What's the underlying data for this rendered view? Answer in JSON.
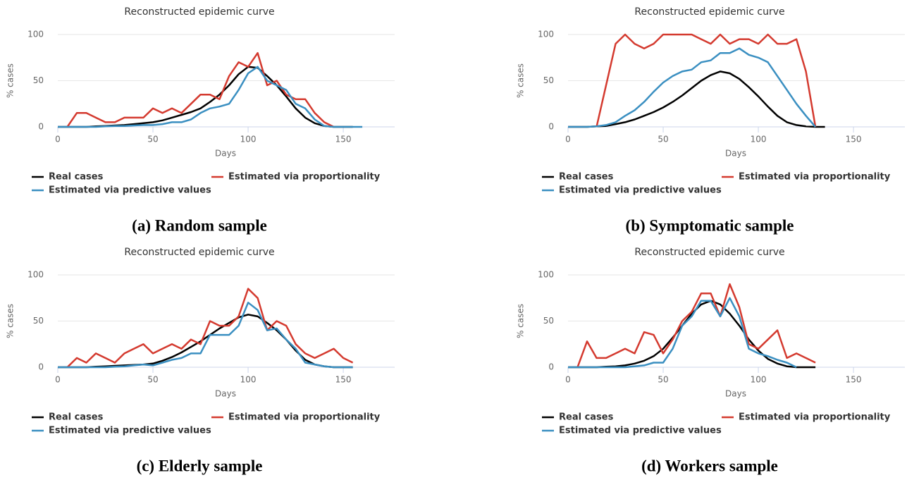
{
  "chart_data": [
    {
      "type": "line",
      "title": "Reconstructed epidemic curve",
      "caption": "(a) Random sample",
      "xlabel": "Days",
      "ylabel": "% cases",
      "xlim": [
        0,
        177
      ],
      "ylim": [
        0,
        100
      ],
      "xticks": [
        0,
        50,
        100,
        150
      ],
      "yticks": [
        0,
        50,
        100
      ],
      "grid": true,
      "x": [
        0,
        5,
        10,
        15,
        20,
        25,
        30,
        35,
        40,
        45,
        50,
        55,
        60,
        65,
        70,
        75,
        80,
        85,
        90,
        95,
        100,
        105,
        110,
        115,
        120,
        125,
        130,
        135,
        140,
        145,
        150,
        155,
        160
      ],
      "series": [
        {
          "name": "Real cases",
          "color": "#000000",
          "values": [
            0,
            0,
            0,
            0,
            0.5,
            1,
            1.5,
            2,
            3,
            4,
            5,
            7,
            10,
            13,
            16,
            20,
            27,
            35,
            45,
            57,
            65,
            64,
            55,
            45,
            33,
            20,
            10,
            4,
            1,
            0,
            0,
            0,
            null
          ]
        },
        {
          "name": "Estimated via proportionality",
          "color": "#d43a2f",
          "values": [
            null,
            0,
            15,
            15,
            10,
            5,
            5,
            10,
            10,
            10,
            20,
            15,
            20,
            15,
            25,
            35,
            35,
            30,
            55,
            70,
            65,
            80,
            45,
            50,
            35,
            30,
            30,
            15,
            5,
            0,
            null,
            null,
            null
          ]
        },
        {
          "name": "Estimated via predictive values",
          "color": "#3a8fc1",
          "values": [
            0,
            0,
            0,
            0,
            0,
            0.5,
            1,
            1,
            1.5,
            2,
            2,
            3,
            5,
            5,
            8,
            15,
            20,
            22,
            25,
            40,
            58,
            65,
            50,
            45,
            40,
            25,
            20,
            8,
            1,
            0,
            0,
            0,
            0
          ]
        }
      ]
    },
    {
      "type": "line",
      "title": "Reconstructed epidemic curve",
      "caption": "(b) Symptomatic sample",
      "xlabel": "Days",
      "ylabel": "% cases",
      "xlim": [
        0,
        177
      ],
      "ylim": [
        0,
        100
      ],
      "xticks": [
        0,
        50,
        100,
        150
      ],
      "yticks": [
        0,
        50,
        100
      ],
      "grid": true,
      "x": [
        0,
        5,
        10,
        15,
        20,
        25,
        30,
        35,
        40,
        45,
        50,
        55,
        60,
        65,
        70,
        75,
        80,
        85,
        90,
        95,
        100,
        105,
        110,
        115,
        120,
        125,
        130,
        135
      ],
      "series": [
        {
          "name": "Real cases",
          "color": "#000000",
          "values": [
            0,
            0,
            0,
            0.5,
            1,
            3,
            5,
            8,
            12,
            16,
            21,
            27,
            34,
            42,
            50,
            56,
            60,
            58,
            52,
            43,
            33,
            22,
            12,
            5,
            2,
            0.5,
            0,
            0
          ]
        },
        {
          "name": "Estimated via proportionality",
          "color": "#d43a2f",
          "values": [
            null,
            null,
            null,
            0,
            45,
            90,
            100,
            90,
            85,
            90,
            100,
            100,
            100,
            100,
            95,
            90,
            100,
            90,
            95,
            95,
            90,
            100,
            90,
            90,
            95,
            60,
            0,
            null
          ]
        },
        {
          "name": "Estimated via predictive values",
          "color": "#3a8fc1",
          "values": [
            0,
            0,
            0,
            0.5,
            2,
            5,
            12,
            18,
            27,
            38,
            48,
            55,
            60,
            62,
            70,
            72,
            80,
            80,
            85,
            78,
            75,
            70,
            55,
            40,
            25,
            12,
            0,
            null
          ]
        }
      ]
    },
    {
      "type": "line",
      "title": "Reconstructed epidemic curve",
      "caption": "(c) Elderly sample",
      "xlabel": "Days",
      "ylabel": "% cases",
      "xlim": [
        0,
        177
      ],
      "ylim": [
        0,
        100
      ],
      "xticks": [
        0,
        50,
        100,
        150
      ],
      "yticks": [
        0,
        50,
        100
      ],
      "grid": true,
      "x": [
        0,
        5,
        10,
        15,
        20,
        25,
        30,
        35,
        40,
        45,
        50,
        55,
        60,
        65,
        70,
        75,
        80,
        85,
        90,
        95,
        100,
        105,
        110,
        115,
        120,
        125,
        130,
        135,
        140,
        145,
        150,
        155,
        160
      ],
      "series": [
        {
          "name": "Real cases",
          "color": "#000000",
          "values": [
            0,
            0,
            0,
            0,
            0.5,
            1,
            1.5,
            2,
            2.5,
            3,
            4,
            7,
            11,
            16,
            22,
            28,
            35,
            42,
            48,
            54,
            57,
            55,
            48,
            40,
            30,
            18,
            8,
            3,
            1,
            0,
            0,
            0,
            null
          ]
        },
        {
          "name": "Estimated via proportionality",
          "color": "#d43a2f",
          "values": [
            null,
            0,
            10,
            5,
            15,
            10,
            5,
            15,
            20,
            25,
            15,
            20,
            25,
            20,
            30,
            25,
            50,
            45,
            45,
            55,
            85,
            75,
            40,
            50,
            45,
            25,
            15,
            10,
            15,
            20,
            10,
            5,
            null
          ]
        },
        {
          "name": "Estimated via predictive values",
          "color": "#3a8fc1",
          "values": [
            0,
            0,
            0,
            0,
            0,
            0,
            0.5,
            1,
            2,
            3,
            2,
            5,
            8,
            10,
            15,
            15,
            35,
            35,
            35,
            45,
            70,
            62,
            40,
            42,
            30,
            20,
            5,
            3,
            1,
            0,
            0,
            0,
            null
          ]
        }
      ]
    },
    {
      "type": "line",
      "title": "Reconstructed epidemic curve",
      "caption": "(d) Workers sample",
      "xlabel": "Days",
      "ylabel": "% cases",
      "xlim": [
        0,
        177
      ],
      "ylim": [
        0,
        100
      ],
      "xticks": [
        0,
        50,
        100,
        150
      ],
      "yticks": [
        0,
        50,
        100
      ],
      "grid": true,
      "x": [
        0,
        5,
        10,
        15,
        20,
        25,
        30,
        35,
        40,
        45,
        50,
        55,
        60,
        65,
        70,
        75,
        80,
        85,
        90,
        95,
        100,
        105,
        110,
        115,
        120,
        125,
        130
      ],
      "series": [
        {
          "name": "Real cases",
          "color": "#000000",
          "values": [
            0,
            0,
            0,
            0,
            0.5,
            1,
            2,
            4,
            7,
            12,
            20,
            32,
            45,
            58,
            68,
            72,
            68,
            58,
            45,
            30,
            18,
            9,
            4,
            1,
            0,
            0,
            0
          ]
        },
        {
          "name": "Estimated via proportionality",
          "color": "#d43a2f",
          "values": [
            null,
            0,
            28,
            10,
            10,
            15,
            20,
            15,
            38,
            35,
            15,
            30,
            50,
            60,
            80,
            80,
            55,
            90,
            65,
            25,
            20,
            30,
            40,
            10,
            15,
            10,
            5
          ]
        },
        {
          "name": "Estimated via predictive values",
          "color": "#3a8fc1",
          "values": [
            0,
            0,
            0,
            0,
            0,
            0,
            0,
            1,
            2,
            5,
            5,
            20,
            45,
            55,
            72,
            72,
            55,
            75,
            55,
            20,
            15,
            12,
            8,
            5,
            0,
            null,
            null
          ]
        }
      ]
    }
  ]
}
